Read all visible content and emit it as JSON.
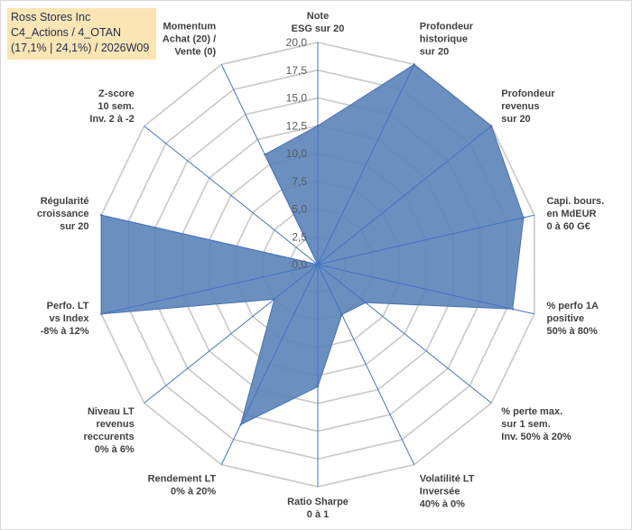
{
  "header": {
    "line1": "Ross Stores Inc",
    "line2": "C4_Actions / 4_OTAN",
    "line3": "(17,1% | 24,1%) / 2026W09"
  },
  "colors": {
    "fill": "#5b83b8",
    "stroke": "#4a72ad",
    "grid": "#c8c8c8",
    "axis": "#4472c4",
    "title_bg": "#fbe5b4"
  },
  "chart_data": {
    "type": "radar",
    "rmin": 0,
    "rmax": 20,
    "tick_step": 2.5,
    "ticks": [
      "0,0",
      "2,5",
      "5,0",
      "7,5",
      "10,0",
      "12,5",
      "15,0",
      "17,5",
      "20,0"
    ],
    "axes": [
      {
        "label": [
          "Note",
          "ESG sur 20"
        ],
        "value": 12.5
      },
      {
        "label": [
          "Profondeur",
          "historique",
          "sur 20"
        ],
        "value": 20
      },
      {
        "label": [
          "Profondeur",
          "revenus",
          "sur 20"
        ],
        "value": 20
      },
      {
        "label": [
          "Capi. bours.",
          "en MdEUR",
          "0 à 60 G€"
        ],
        "value": 19
      },
      {
        "label": [
          "% perfo 1A",
          "positive",
          "50% à 80%"
        ],
        "value": 18
      },
      {
        "label": [
          "% perte max.",
          "sur 1 sem.",
          "Inv. 50% à 20%"
        ],
        "value": 5.5
      },
      {
        "label": [
          "Volatilité LT",
          "Inversée",
          "40% à 0%"
        ],
        "value": 5
      },
      {
        "label": [
          "Ratio Sharpe",
          "0 à 1"
        ],
        "value": 11
      },
      {
        "label": [
          "Rendement LT",
          "0% à 20%"
        ],
        "value": 16
      },
      {
        "label": [
          "Niveau LT",
          "revenus",
          "reccurents",
          "0% à 6%"
        ],
        "value": 5
      },
      {
        "label": [
          "Perfo. LT",
          "vs Index",
          "-8% à 12%"
        ],
        "value": 20
      },
      {
        "label": [
          "Régularité",
          "croissance",
          "sur 20"
        ],
        "value": 20
      },
      {
        "label": [
          "Z-score",
          "10 sem.",
          "Inv. 2 à -2"
        ],
        "value": 0
      },
      {
        "label": [
          "Momentum",
          "Achat (20) /",
          "Vente (0)"
        ],
        "value": 11
      }
    ]
  }
}
